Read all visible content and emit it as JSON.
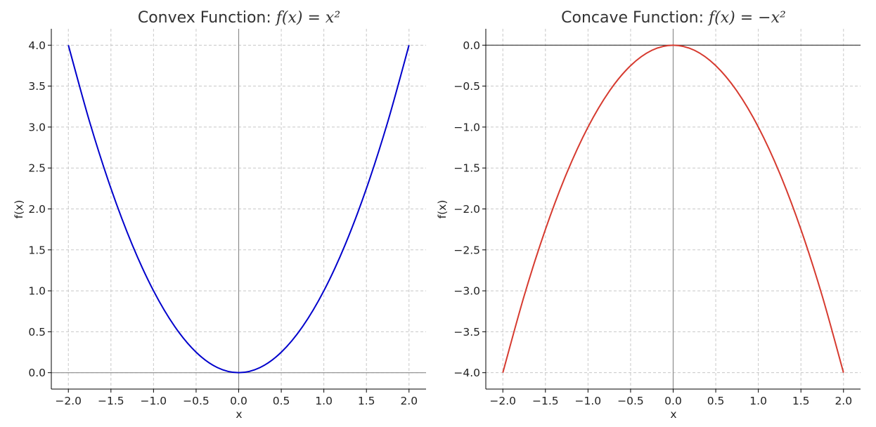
{
  "chart_data": [
    {
      "type": "line",
      "title_prefix": "Convex Function: ",
      "title_math": "f(x) = x²",
      "xlabel": "x",
      "ylabel": "f(x)",
      "xlim": [
        -2.2,
        2.2
      ],
      "ylim": [
        -0.2,
        4.2
      ],
      "xticks": [
        -2.0,
        -1.5,
        -1.0,
        -0.5,
        0.0,
        0.5,
        1.0,
        1.5,
        2.0
      ],
      "yticks": [
        0.0,
        0.5,
        1.0,
        1.5,
        2.0,
        2.5,
        3.0,
        3.5,
        4.0
      ],
      "xtick_labels": [
        "−2.0",
        "−1.5",
        "−1.0",
        "−0.5",
        "0.0",
        "0.5",
        "1.0",
        "1.5",
        "2.0"
      ],
      "ytick_labels": [
        "0.0",
        "0.5",
        "1.0",
        "1.5",
        "2.0",
        "2.5",
        "3.0",
        "3.5",
        "4.0"
      ],
      "grid": true,
      "color": "#0000cc",
      "x": [
        -2.0,
        -1.75,
        -1.5,
        -1.25,
        -1.0,
        -0.75,
        -0.5,
        -0.25,
        0.0,
        0.25,
        0.5,
        0.75,
        1.0,
        1.25,
        1.5,
        1.75,
        2.0
      ],
      "y": [
        4.0,
        3.0625,
        2.25,
        1.5625,
        1.0,
        0.5625,
        0.25,
        0.0625,
        0.0,
        0.0625,
        0.25,
        0.5625,
        1.0,
        1.5625,
        2.25,
        3.0625,
        4.0
      ]
    },
    {
      "type": "line",
      "title_prefix": "Concave Function: ",
      "title_math": "f(x) = −x²",
      "xlabel": "x",
      "ylabel": "f(x)",
      "xlim": [
        -2.2,
        2.2
      ],
      "ylim": [
        -4.2,
        0.2
      ],
      "xticks": [
        -2.0,
        -1.5,
        -1.0,
        -0.5,
        0.0,
        0.5,
        1.0,
        1.5,
        2.0
      ],
      "yticks": [
        0.0,
        -0.5,
        -1.0,
        -1.5,
        -2.0,
        -2.5,
        -3.0,
        -3.5,
        -4.0
      ],
      "xtick_labels": [
        "−2.0",
        "−1.5",
        "−1.0",
        "−0.5",
        "0.0",
        "0.5",
        "1.0",
        "1.5",
        "2.0"
      ],
      "ytick_labels": [
        "0.0",
        "−0.5",
        "−1.0",
        "−1.5",
        "−2.0",
        "−2.5",
        "−3.0",
        "−3.5",
        "−4.0"
      ],
      "grid": true,
      "color": "#d63a2f",
      "x": [
        -2.0,
        -1.75,
        -1.5,
        -1.25,
        -1.0,
        -0.75,
        -0.5,
        -0.25,
        0.0,
        0.25,
        0.5,
        0.75,
        1.0,
        1.25,
        1.5,
        1.75,
        2.0
      ],
      "y": [
        -4.0,
        -3.0625,
        -2.25,
        -1.5625,
        -1.0,
        -0.5625,
        -0.25,
        -0.0625,
        0.0,
        -0.0625,
        -0.25,
        -0.5625,
        -1.0,
        -1.5625,
        -2.25,
        -3.0625,
        -4.0
      ]
    }
  ]
}
